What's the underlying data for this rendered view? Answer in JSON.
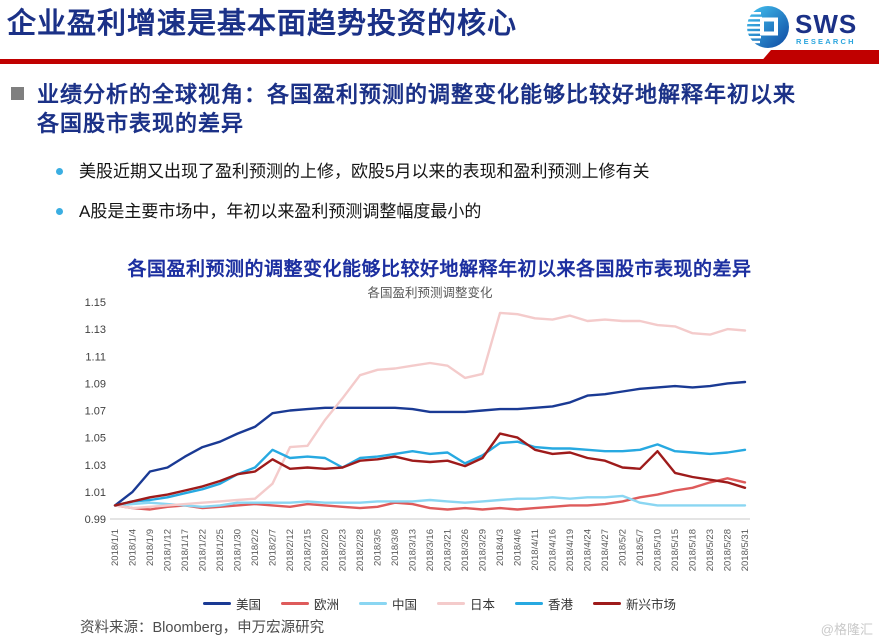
{
  "header": {
    "title": "企业盈利增速是基本面趋势投资的核心",
    "logo_text": "SWS",
    "logo_subtext": "RESEARCH"
  },
  "section": {
    "heading_lines": [
      "业绩分析的全球视角：各国盈利预测的调整变化能够比较好地解释年初以来",
      "各国股市表现的差异"
    ],
    "bullets": [
      "美股近期又出现了盈利预测的上修，欧股5月以来的表现和盈利预测上修有关",
      "A股是主要市场中，年初以来盈利预测调整幅度最小的"
    ]
  },
  "chart": {
    "caption": "各国盈利预测的调整变化能够比较好地解释年初以来各国股市表现的差异"
  },
  "chart_data": {
    "type": "line",
    "title": "各国盈利预测调整变化",
    "ylim": [
      0.99,
      1.15
    ],
    "y_ticks": [
      0.99,
      1.01,
      1.03,
      1.05,
      1.07,
      1.09,
      1.11,
      1.13,
      1.15
    ],
    "grid": false,
    "legend_position": "bottom",
    "categories": [
      "2018/1/1",
      "2018/1/4",
      "2018/1/9",
      "2018/1/12",
      "2018/1/17",
      "2018/1/22",
      "2018/1/25",
      "2018/1/30",
      "2018/2/2",
      "2018/2/7",
      "2018/2/12",
      "2018/2/15",
      "2018/2/20",
      "2018/2/23",
      "2018/2/28",
      "2018/3/5",
      "2018/3/8",
      "2018/3/13",
      "2018/3/16",
      "2018/3/21",
      "2018/3/26",
      "2018/3/29",
      "2018/4/3",
      "2018/4/6",
      "2018/4/11",
      "2018/4/16",
      "2018/4/19",
      "2018/4/24",
      "2018/4/27",
      "2018/5/2",
      "2018/5/7",
      "2018/5/10",
      "2018/5/15",
      "2018/5/18",
      "2018/5/23",
      "2018/5/28",
      "2018/5/31"
    ],
    "series": [
      {
        "name": "美国",
        "color": "#1A3A94",
        "values": [
          1.0,
          1.01,
          1.025,
          1.028,
          1.036,
          1.043,
          1.047,
          1.053,
          1.058,
          1.068,
          1.07,
          1.071,
          1.072,
          1.072,
          1.072,
          1.072,
          1.072,
          1.071,
          1.069,
          1.069,
          1.069,
          1.07,
          1.071,
          1.071,
          1.072,
          1.073,
          1.076,
          1.081,
          1.082,
          1.084,
          1.086,
          1.087,
          1.088,
          1.087,
          1.088,
          1.09,
          1.091
        ]
      },
      {
        "name": "欧洲",
        "color": "#DE5B5B",
        "values": [
          1.0,
          0.998,
          0.997,
          0.999,
          1.0,
          0.998,
          0.999,
          1.0,
          1.001,
          1.0,
          0.999,
          1.001,
          1.0,
          0.999,
          0.998,
          0.999,
          1.002,
          1.001,
          0.998,
          0.997,
          0.998,
          0.997,
          0.998,
          0.997,
          0.998,
          0.999,
          1.0,
          1.0,
          1.001,
          1.003,
          1.006,
          1.008,
          1.011,
          1.013,
          1.017,
          1.02,
          1.017
        ]
      },
      {
        "name": "中国",
        "color": "#8AD6F2",
        "values": [
          1.0,
          1.001,
          1.002,
          1.001,
          1.0,
          0.999,
          1.0,
          1.002,
          1.002,
          1.002,
          1.002,
          1.003,
          1.002,
          1.002,
          1.002,
          1.003,
          1.003,
          1.003,
          1.004,
          1.003,
          1.002,
          1.003,
          1.004,
          1.005,
          1.005,
          1.006,
          1.005,
          1.006,
          1.006,
          1.007,
          1.002,
          1.0,
          1.0,
          1.0,
          1.0,
          1.0,
          1.0
        ]
      },
      {
        "name": "日本",
        "color": "#F4CBCB",
        "values": [
          1.0,
          0.998,
          0.999,
          1.0,
          1.001,
          1.002,
          1.003,
          1.004,
          1.005,
          1.016,
          1.043,
          1.044,
          1.063,
          1.079,
          1.096,
          1.1,
          1.101,
          1.103,
          1.105,
          1.103,
          1.094,
          1.097,
          1.142,
          1.141,
          1.138,
          1.137,
          1.14,
          1.136,
          1.137,
          1.136,
          1.136,
          1.133,
          1.132,
          1.127,
          1.126,
          1.13,
          1.129
        ]
      },
      {
        "name": "香港",
        "color": "#27A9E1",
        "values": [
          1.0,
          1.003,
          1.004,
          1.006,
          1.009,
          1.012,
          1.016,
          1.023,
          1.028,
          1.041,
          1.035,
          1.036,
          1.035,
          1.028,
          1.035,
          1.036,
          1.038,
          1.04,
          1.038,
          1.039,
          1.031,
          1.037,
          1.046,
          1.047,
          1.043,
          1.042,
          1.042,
          1.041,
          1.04,
          1.04,
          1.041,
          1.045,
          1.04,
          1.039,
          1.038,
          1.039,
          1.041
        ]
      },
      {
        "name": "新兴市场",
        "color": "#9E1B1B",
        "values": [
          1.0,
          1.003,
          1.006,
          1.008,
          1.011,
          1.014,
          1.018,
          1.023,
          1.025,
          1.034,
          1.027,
          1.028,
          1.027,
          1.028,
          1.033,
          1.034,
          1.036,
          1.033,
          1.032,
          1.033,
          1.029,
          1.035,
          1.053,
          1.05,
          1.041,
          1.038,
          1.039,
          1.035,
          1.033,
          1.028,
          1.027,
          1.04,
          1.024,
          1.021,
          1.019,
          1.017,
          1.013
        ]
      }
    ]
  },
  "footer": {
    "source": "资料来源：Bloomberg，申万宏源研究",
    "watermark": "@格隆汇"
  },
  "colors": {
    "accent_red": "#C00000",
    "title_blue": "#1B3187",
    "caption_blue": "#1C2FA0",
    "bullet_dot": "#3BAEE2",
    "logo_dark_blue": "#1B3187",
    "logo_light_blue": "#2BA6DE"
  }
}
